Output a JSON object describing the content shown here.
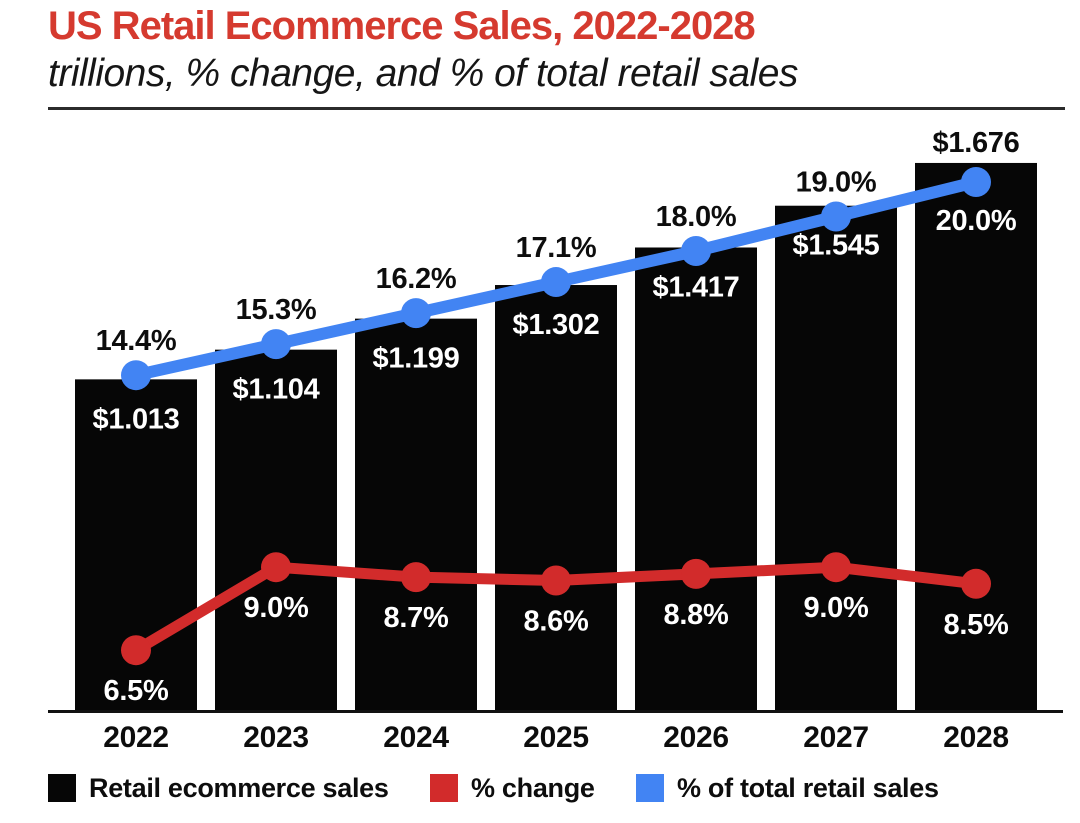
{
  "page": {
    "title": "US Retail Ecommerce Sales, 2022-2028",
    "subtitle": "trillions, % change, and % of total retail sales"
  },
  "colors": {
    "title_red": "#d53a2f",
    "bar_black": "#060606",
    "line_red": "#d22b2b",
    "line_blue": "#4284f3",
    "axis_dark": "#111111",
    "label_dark": "#0d0d0d",
    "label_white": "#ffffff"
  },
  "legend": [
    {
      "label": "Retail ecommerce sales",
      "color": "#060606"
    },
    {
      "label": "% change",
      "color": "#d22b2b"
    },
    {
      "label": "% of total retail sales",
      "color": "#4284f3"
    }
  ],
  "chart_data": {
    "type": "bar+line combo",
    "title": "US Retail Ecommerce Sales, 2022-2028",
    "subtitle": "trillions, % change, and % of total retail sales",
    "categories": [
      "2022",
      "2023",
      "2024",
      "2025",
      "2026",
      "2027",
      "2028"
    ],
    "series": [
      {
        "name": "Retail ecommerce sales",
        "type": "bar",
        "unit": "$ trillions",
        "values": [
          1.013,
          1.104,
          1.199,
          1.302,
          1.417,
          1.545,
          1.676
        ],
        "labels": [
          "$1.013",
          "$1.104",
          "$1.199",
          "$1.302",
          "$1.417",
          "$1.545",
          "$1.676"
        ]
      },
      {
        "name": "% change",
        "type": "line",
        "unit": "percent",
        "values": [
          6.5,
          9.0,
          8.7,
          8.6,
          8.8,
          9.0,
          8.5
        ],
        "labels": [
          "6.5%",
          "9.0%",
          "8.7%",
          "8.6%",
          "8.8%",
          "9.0%",
          "8.5%"
        ]
      },
      {
        "name": "% of total retail sales",
        "type": "line",
        "unit": "percent",
        "values": [
          14.4,
          15.3,
          16.2,
          17.1,
          18.0,
          19.0,
          20.0
        ],
        "labels": [
          "14.4%",
          "15.3%",
          "16.2%",
          "17.1%",
          "18.0%",
          "19.0%",
          "20.0%"
        ]
      }
    ],
    "layout_hints": {
      "bar_value_labels_inside_bars": true,
      "last_bar_value_label_above_bar": true,
      "legend_position": "bottom",
      "grid": false,
      "axes_shown": "x only"
    }
  }
}
